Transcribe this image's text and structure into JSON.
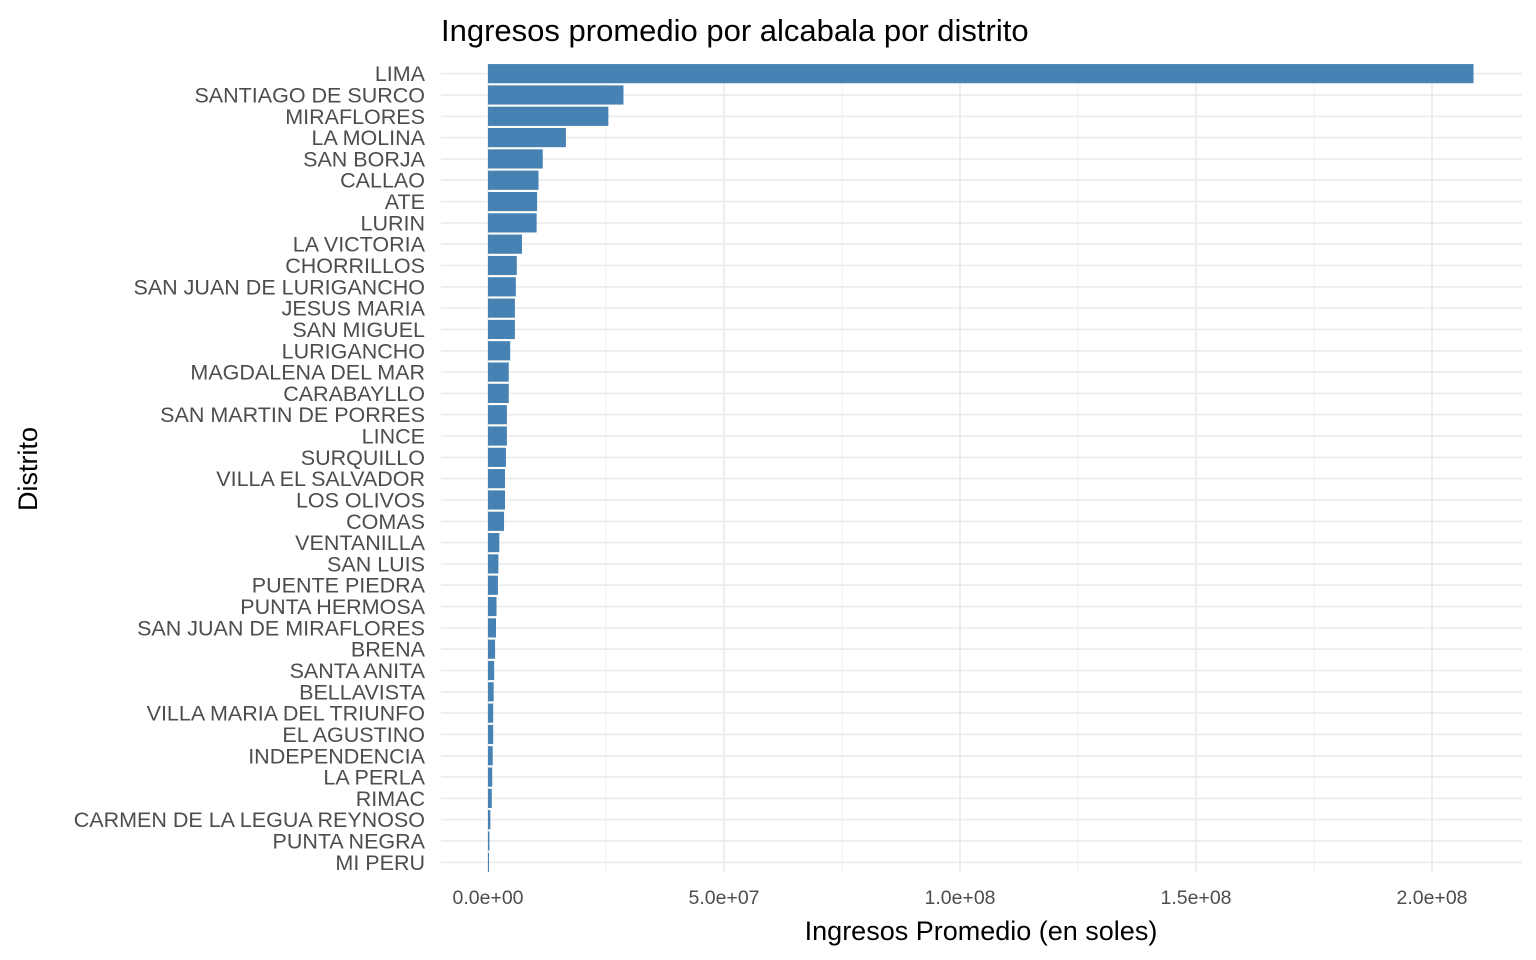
{
  "chart_data": {
    "type": "bar",
    "orientation": "horizontal",
    "title": "Ingresos promedio por alcabala por distrito",
    "xlabel": "Ingresos Promedio (en soles)",
    "ylabel": "Distrito",
    "xlim": [
      0,
      219000000
    ],
    "x_ticks": [
      0,
      50000000,
      100000000,
      150000000,
      200000000
    ],
    "x_tick_labels": [
      "0.0e+00",
      "5.0e+07",
      "1.0e+08",
      "1.5e+08",
      "2.0e+08"
    ],
    "bar_color": "#4682b4",
    "grid": true,
    "legend": "none",
    "categories": [
      "LIMA",
      "SANTIAGO DE SURCO",
      "MIRAFLORES",
      "LA MOLINA",
      "SAN BORJA",
      "CALLAO",
      "ATE",
      "LURIN",
      "LA VICTORIA",
      "CHORRILLOS",
      "SAN JUAN DE LURIGANCHO",
      "JESUS MARIA",
      "SAN MIGUEL",
      "LURIGANCHO",
      "MAGDALENA DEL MAR",
      "CARABAYLLO",
      "SAN MARTIN DE PORRES",
      "LINCE",
      "SURQUILLO",
      "VILLA EL SALVADOR",
      "LOS OLIVOS",
      "COMAS",
      "VENTANILLA",
      "SAN LUIS",
      "PUENTE PIEDRA",
      "PUNTA HERMOSA",
      "SAN JUAN DE MIRAFLORES",
      "BRENA",
      "SANTA ANITA",
      "BELLAVISTA",
      "VILLA MARIA DEL TRIUNFO",
      "EL AGUSTINO",
      "INDEPENDENCIA",
      "LA PERLA",
      "RIMAC",
      "CARMEN DE LA LEGUA REYNOSO",
      "PUNTA NEGRA",
      "MI PERU"
    ],
    "values": [
      208800000,
      28700000,
      25500000,
      16500000,
      11600000,
      10700000,
      10400000,
      10300000,
      7200000,
      6100000,
      5900000,
      5700000,
      5700000,
      4700000,
      4400000,
      4400000,
      4000000,
      4000000,
      3800000,
      3600000,
      3600000,
      3400000,
      2400000,
      2200000,
      2100000,
      1800000,
      1700000,
      1500000,
      1300000,
      1200000,
      1100000,
      1100000,
      1000000,
      900000,
      800000,
      500000,
      300000,
      200000
    ]
  }
}
